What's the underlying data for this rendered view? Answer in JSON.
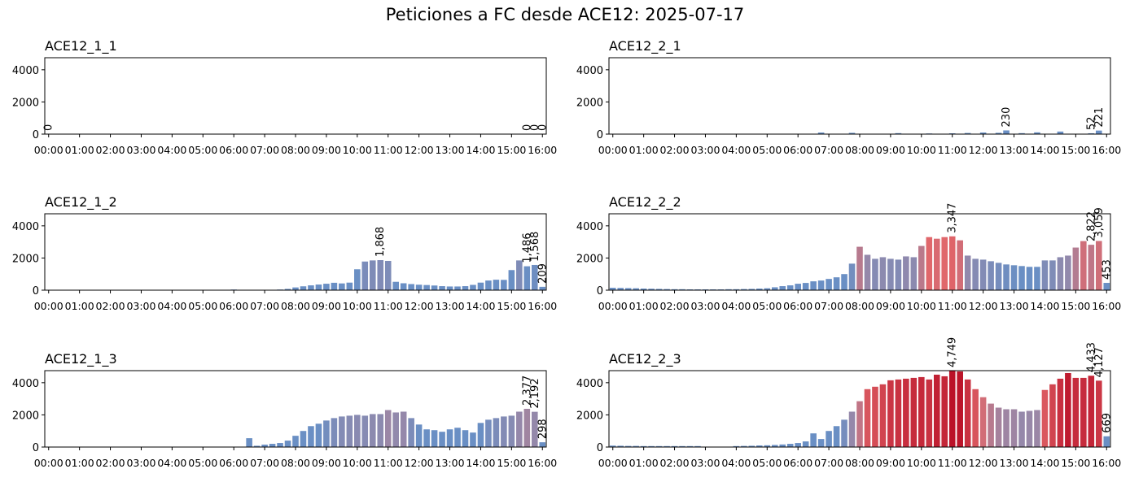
{
  "chart_data": {
    "type": "bar",
    "title": "Peticiones a FC desde ACE12: 2025-07-17",
    "categories": [
      "00:00",
      null,
      null,
      null,
      "01:00",
      null,
      null,
      null,
      "02:00",
      null,
      null,
      null,
      "03:00",
      null,
      null,
      null,
      "04:00",
      null,
      null,
      null,
      "05:00",
      null,
      null,
      null,
      "06:00",
      null,
      null,
      null,
      "07:00",
      null,
      null,
      null,
      "08:00",
      null,
      null,
      null,
      "09:00",
      null,
      null,
      null,
      "10:00",
      null,
      null,
      null,
      "11:00",
      null,
      null,
      null,
      "12:00",
      null,
      null,
      null,
      "13:00",
      null,
      null,
      null,
      "14:00",
      null,
      null,
      null,
      "15:00",
      null,
      null,
      null,
      "16:00"
    ],
    "ylim": [
      0,
      4750
    ],
    "yticks": [
      0,
      2000,
      4000
    ],
    "color_scale": {
      "domain": [
        0,
        1500,
        2300,
        3300,
        4750
      ],
      "range": [
        "#6a8fc4",
        "#6a8fc4",
        "#9b87a6",
        "#e0676b",
        "#bb1228"
      ]
    },
    "panels": [
      {
        "title": "ACE12_1_1",
        "values": [
          0,
          0,
          0,
          0,
          0,
          0,
          0,
          0,
          0,
          0,
          0,
          0,
          0,
          0,
          0,
          0,
          0,
          0,
          0,
          0,
          0,
          0,
          0,
          0,
          0,
          0,
          0,
          0,
          0,
          0,
          0,
          0,
          0,
          0,
          0,
          0,
          0,
          0,
          0,
          0,
          0,
          0,
          0,
          0,
          0,
          0,
          0,
          0,
          0,
          0,
          0,
          0,
          0,
          0,
          0,
          0,
          0,
          0,
          0,
          0,
          0,
          0,
          0,
          0,
          0
        ],
        "value_labels": [
          "0",
          null,
          null,
          null,
          null,
          null,
          null,
          null,
          null,
          null,
          null,
          null,
          null,
          null,
          null,
          null,
          null,
          null,
          null,
          null,
          null,
          null,
          null,
          null,
          null,
          null,
          null,
          null,
          null,
          null,
          null,
          null,
          null,
          null,
          null,
          null,
          null,
          null,
          null,
          null,
          null,
          null,
          null,
          null,
          null,
          null,
          null,
          null,
          null,
          null,
          null,
          null,
          null,
          null,
          null,
          null,
          null,
          null,
          null,
          null,
          null,
          null,
          "0",
          "0",
          "0"
        ]
      },
      {
        "title": "ACE12_2_1",
        "values": [
          0,
          0,
          0,
          0,
          0,
          0,
          0,
          0,
          0,
          0,
          0,
          0,
          0,
          0,
          0,
          0,
          0,
          0,
          0,
          0,
          0,
          0,
          0,
          0,
          0,
          0,
          0,
          100,
          0,
          0,
          0,
          80,
          0,
          0,
          0,
          0,
          0,
          60,
          0,
          0,
          0,
          40,
          0,
          0,
          50,
          0,
          70,
          0,
          100,
          0,
          80,
          230,
          0,
          60,
          0,
          110,
          0,
          0,
          160,
          0,
          0,
          0,
          52,
          221,
          0
        ],
        "value_labels": [
          null,
          null,
          null,
          null,
          null,
          null,
          null,
          null,
          null,
          null,
          null,
          null,
          null,
          null,
          null,
          null,
          null,
          null,
          null,
          null,
          null,
          null,
          null,
          null,
          null,
          null,
          null,
          null,
          null,
          null,
          null,
          null,
          null,
          null,
          null,
          null,
          null,
          null,
          null,
          null,
          null,
          null,
          null,
          null,
          null,
          null,
          null,
          null,
          null,
          null,
          null,
          "230",
          null,
          null,
          null,
          null,
          null,
          null,
          null,
          null,
          null,
          null,
          "52",
          "221",
          null
        ]
      },
      {
        "title": "ACE12_1_2",
        "values": [
          0,
          0,
          0,
          0,
          0,
          0,
          0,
          0,
          0,
          0,
          0,
          0,
          0,
          0,
          0,
          0,
          0,
          0,
          0,
          0,
          0,
          0,
          0,
          0,
          40,
          0,
          0,
          0,
          0,
          20,
          40,
          80,
          170,
          240,
          300,
          350,
          400,
          460,
          420,
          470,
          1300,
          1780,
          1850,
          1868,
          1820,
          520,
          430,
          380,
          340,
          320,
          290,
          250,
          230,
          230,
          250,
          330,
          470,
          600,
          650,
          640,
          1250,
          1850,
          1486,
          1568,
          209
        ],
        "value_labels": [
          null,
          null,
          null,
          null,
          null,
          null,
          null,
          null,
          null,
          null,
          null,
          null,
          null,
          null,
          null,
          null,
          null,
          null,
          null,
          null,
          null,
          null,
          null,
          null,
          null,
          null,
          null,
          null,
          null,
          null,
          null,
          null,
          null,
          null,
          null,
          null,
          null,
          null,
          null,
          null,
          null,
          null,
          null,
          "1,868",
          null,
          null,
          null,
          null,
          null,
          null,
          null,
          null,
          null,
          null,
          null,
          null,
          null,
          null,
          null,
          null,
          null,
          null,
          "1,486",
          "1,568",
          "209"
        ]
      },
      {
        "title": "ACE12_2_2",
        "values": [
          150,
          140,
          130,
          120,
          100,
          90,
          80,
          70,
          60,
          60,
          50,
          50,
          50,
          50,
          50,
          60,
          60,
          70,
          80,
          100,
          120,
          180,
          250,
          300,
          400,
          450,
          550,
          600,
          700,
          800,
          1000,
          1650,
          2700,
          2200,
          1950,
          2050,
          1950,
          1900,
          2100,
          2050,
          2750,
          3300,
          3200,
          3300,
          3347,
          3100,
          2150,
          1950,
          1900,
          1800,
          1700,
          1600,
          1550,
          1500,
          1450,
          1450,
          1850,
          1850,
          2050,
          2150,
          2650,
          3050,
          2822,
          3059,
          453
        ],
        "value_labels": [
          null,
          null,
          null,
          null,
          null,
          null,
          null,
          null,
          null,
          null,
          null,
          null,
          null,
          null,
          null,
          null,
          null,
          null,
          null,
          null,
          null,
          null,
          null,
          null,
          null,
          null,
          null,
          null,
          null,
          null,
          null,
          null,
          null,
          null,
          null,
          null,
          null,
          null,
          null,
          null,
          null,
          null,
          null,
          null,
          "3,347",
          null,
          null,
          null,
          null,
          null,
          null,
          null,
          null,
          null,
          null,
          null,
          null,
          null,
          null,
          null,
          null,
          null,
          "2,822",
          "3,059",
          "453"
        ]
      },
      {
        "title": "ACE12_1_3",
        "values": [
          0,
          0,
          0,
          0,
          0,
          0,
          0,
          0,
          0,
          0,
          0,
          0,
          0,
          0,
          0,
          0,
          0,
          0,
          0,
          0,
          0,
          0,
          0,
          0,
          0,
          0,
          550,
          80,
          150,
          200,
          250,
          400,
          700,
          1000,
          1300,
          1450,
          1650,
          1800,
          1900,
          1950,
          2000,
          1950,
          2050,
          2050,
          2300,
          2150,
          2200,
          1800,
          1400,
          1100,
          1050,
          950,
          1100,
          1200,
          1050,
          900,
          1500,
          1700,
          1800,
          1900,
          1950,
          2200,
          2377,
          2192,
          298
        ],
        "value_labels": [
          null,
          null,
          null,
          null,
          null,
          null,
          null,
          null,
          null,
          null,
          null,
          null,
          null,
          null,
          null,
          null,
          null,
          null,
          null,
          null,
          null,
          null,
          null,
          null,
          null,
          null,
          null,
          null,
          null,
          null,
          null,
          null,
          null,
          null,
          null,
          null,
          null,
          null,
          null,
          null,
          null,
          null,
          null,
          null,
          null,
          null,
          null,
          null,
          null,
          null,
          null,
          null,
          null,
          null,
          null,
          null,
          null,
          null,
          null,
          null,
          null,
          null,
          "2,377",
          "2,192",
          "298"
        ]
      },
      {
        "title": "ACE12_2_3",
        "values": [
          90,
          80,
          70,
          70,
          60,
          60,
          60,
          60,
          60,
          60,
          60,
          60,
          20,
          20,
          20,
          20,
          60,
          70,
          80,
          100,
          110,
          130,
          160,
          200,
          250,
          350,
          850,
          500,
          1000,
          1300,
          1700,
          2200,
          2850,
          3600,
          3750,
          3900,
          4150,
          4200,
          4250,
          4300,
          4350,
          4200,
          4500,
          4400,
          4749,
          4700,
          4200,
          3600,
          3100,
          2700,
          2450,
          2350,
          2350,
          2200,
          2250,
          2300,
          3550,
          3900,
          4250,
          4600,
          4300,
          4300,
          4433,
          4127,
          669
        ],
        "value_labels": [
          null,
          null,
          null,
          null,
          null,
          null,
          null,
          null,
          null,
          null,
          null,
          null,
          null,
          null,
          null,
          null,
          null,
          null,
          null,
          null,
          null,
          null,
          null,
          null,
          null,
          null,
          null,
          null,
          null,
          null,
          null,
          null,
          null,
          null,
          null,
          null,
          null,
          null,
          null,
          null,
          null,
          null,
          null,
          null,
          "4,749",
          null,
          null,
          null,
          null,
          null,
          null,
          null,
          null,
          null,
          null,
          null,
          null,
          null,
          null,
          null,
          null,
          null,
          "4,433",
          "4,127",
          "669"
        ]
      }
    ]
  }
}
